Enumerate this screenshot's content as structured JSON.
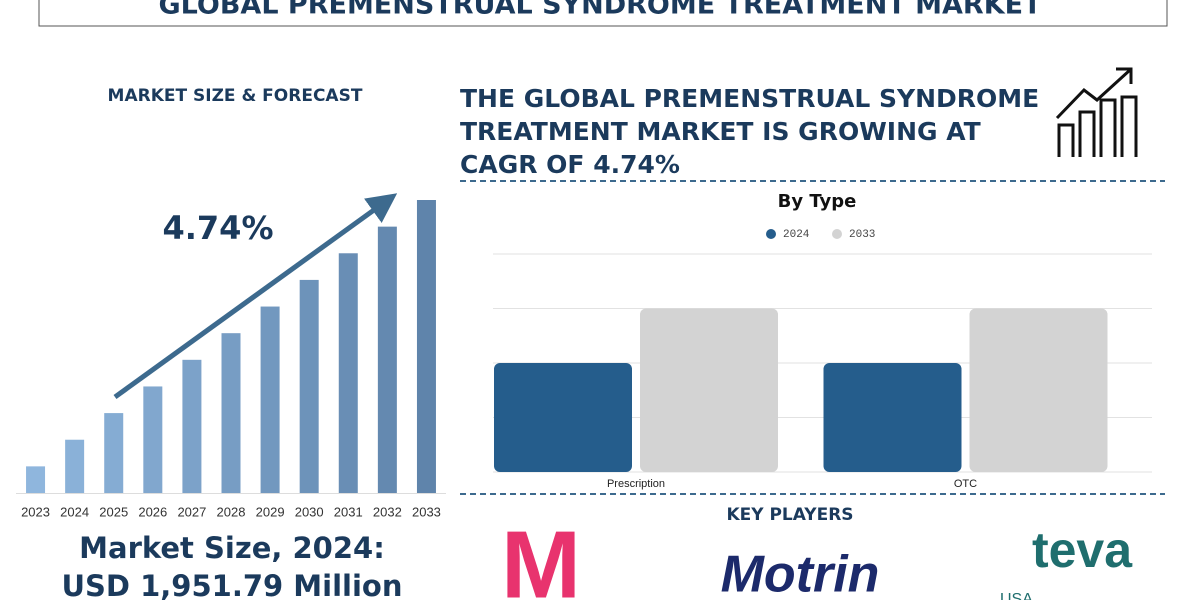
{
  "header": {
    "title": "GLOBAL PREMENSTRUAL SYNDROME TREATMENT MARKET"
  },
  "left_panel": {
    "heading": "MARKET SIZE & FORECAST",
    "cagr": "4.74%",
    "market_size": [
      "Market Size, 2024:",
      "USD 1,951.79 Million"
    ]
  },
  "right_panel": {
    "headline": [
      "THE GLOBAL PREMENSTRUAL SYNDROME",
      "TREATMENT MARKET IS GROWING AT",
      "CAGR OF 4.74%"
    ]
  },
  "chart_data": [
    {
      "type": "bar",
      "categories": [
        "2023",
        "2024",
        "2025",
        "2026",
        "2027",
        "2028",
        "2029",
        "2030",
        "2031",
        "2032",
        "2033"
      ],
      "values": [
        1,
        2,
        3,
        4,
        5,
        6,
        7,
        8,
        9,
        10,
        11
      ],
      "ylim": [
        0,
        11
      ],
      "colors": [
        "#8fb6dd",
        "#5f84ab"
      ]
    },
    {
      "type": "grouped_bar",
      "title": "By Type",
      "categories": [
        "Prescription",
        "OTC"
      ],
      "series": [
        {
          "name": "2024",
          "color": "#255d8c",
          "values": [
            2,
            2
          ]
        },
        {
          "name": "2033",
          "color": "#d3d3d3",
          "values": [
            3,
            3
          ]
        }
      ],
      "ylim": [
        0,
        4
      ],
      "yticks": [
        0,
        1,
        2,
        3,
        4
      ],
      "grid": true,
      "tick_labels": false
    }
  ],
  "key_players": {
    "title": "KEY PLAYERS",
    "logos": [
      "M",
      "Motrin",
      "teva",
      "USA"
    ]
  }
}
